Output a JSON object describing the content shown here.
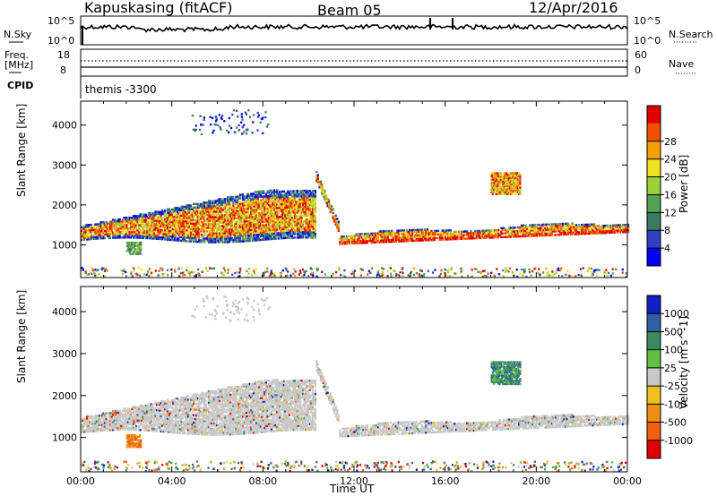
{
  "header": {
    "station": "Kapuskasing (fitACF)",
    "beam": "Beam 05",
    "date": "12/Apr/2016"
  },
  "sky_panel": {
    "left_label": "N.Sky",
    "left_ticks": [
      "10^5",
      "10^0"
    ],
    "right_label": "N.Search",
    "right_ticks": [
      "10^5",
      "10^0"
    ]
  },
  "freq_panel": {
    "left_label_line1": "Freq.",
    "left_label_line2": "[MHz]",
    "left_ticks": [
      "18",
      "8"
    ],
    "right_label": "Nave",
    "right_ticks": [
      "60",
      "0"
    ],
    "cpid_label": "CPID",
    "cpid_value": "themis -3300"
  },
  "chart_data": [
    {
      "type": "heatmap",
      "name": "power",
      "ylabel": "Slant Range [km]",
      "yticks": [
        1000,
        2000,
        3000,
        4000
      ],
      "ylim": [
        180,
        4600
      ],
      "colorbar": {
        "label": "Power [dB]",
        "ticks": [
          "4",
          "8",
          "12",
          "16",
          "20",
          "24",
          "28"
        ],
        "range": [
          0,
          30
        ],
        "colors": [
          "#0000ff",
          "#2f3fbf",
          "#3a7a5f",
          "#55a055",
          "#9ad23a",
          "#f0e020",
          "#f5a000",
          "#f05000",
          "#e00000"
        ]
      },
      "features": [
        {
          "label": "main-scatter",
          "t_start": 0.0,
          "t_end": 10.3,
          "range_start": 1150,
          "range_end": 2500
        },
        {
          "label": "near-range-patch",
          "t_start": 2.0,
          "t_end": 2.6,
          "range_start": 800,
          "range_end": 1100
        },
        {
          "label": "slant-transition",
          "t_start": 10.3,
          "t_end": 11.3,
          "range_start": 2750,
          "range_end": 1450
        },
        {
          "label": "late-band",
          "t_start": 11.3,
          "t_end": 24.0,
          "range_start": 1150,
          "range_end": 1450
        },
        {
          "label": "isolated-patch",
          "t_start": 18.0,
          "t_end": 19.3,
          "range_start": 2300,
          "range_end": 2850
        }
      ]
    },
    {
      "type": "heatmap",
      "name": "velocity",
      "ylabel": "Slant Range [km]",
      "yticks": [
        1000,
        2000,
        3000,
        4000
      ],
      "ylim": [
        180,
        4600
      ],
      "xlabel": "Time UT",
      "xticks": [
        "00:00",
        "04:00",
        "08:00",
        "12:00",
        "16:00",
        "20:00",
        "00:00"
      ],
      "colorbar": {
        "label": "Velocity [m s^-1]",
        "ticks": [
          "1000",
          "500",
          "100",
          "25",
          "-25",
          "-100",
          "-500",
          "-1000"
        ],
        "colors": [
          "#1020c0",
          "#3060a0",
          "#3a8a60",
          "#60c040",
          "#c8c8c8",
          "#f0c020",
          "#f09010",
          "#f06010",
          "#e00000"
        ]
      }
    }
  ]
}
